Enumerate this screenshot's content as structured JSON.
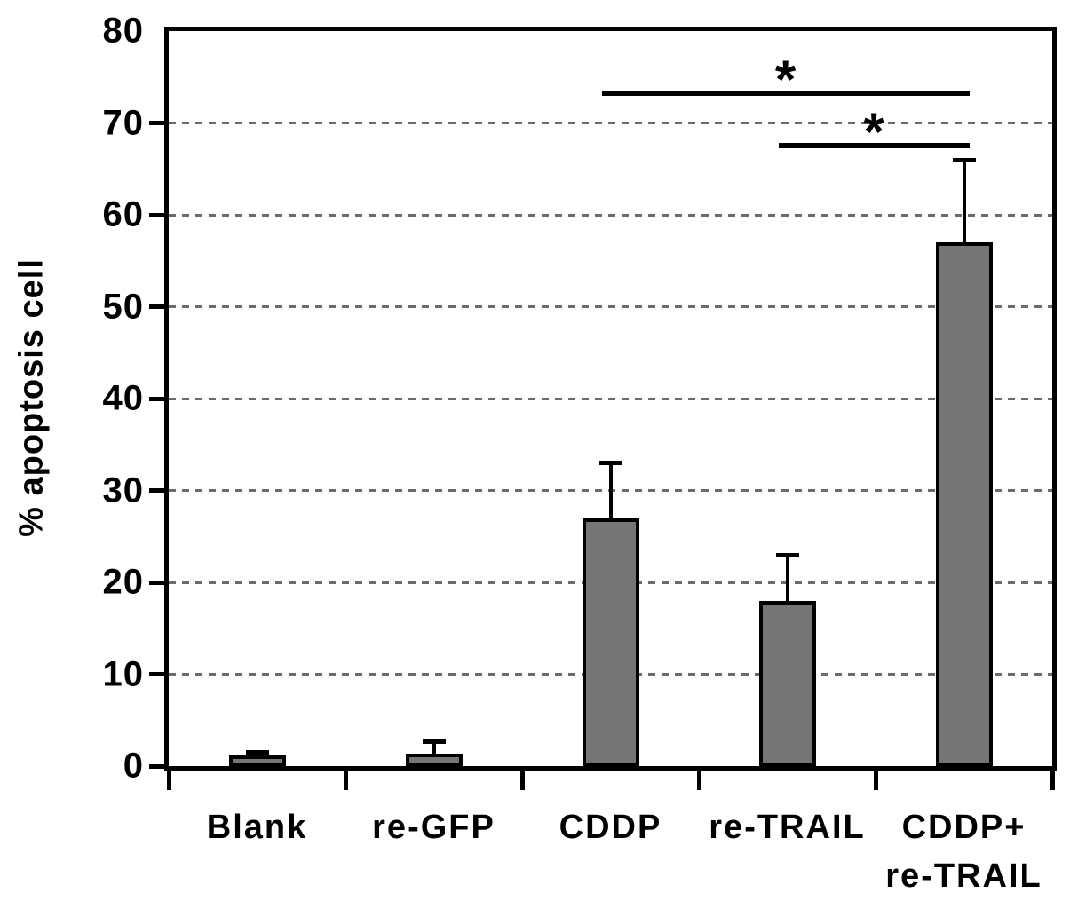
{
  "chart_data": {
    "type": "bar",
    "title": "",
    "xlabel": "",
    "ylabel": "% apoptosis cell",
    "ylim": [
      0,
      80
    ],
    "yticks": [
      0,
      10,
      20,
      30,
      40,
      50,
      60,
      70,
      80
    ],
    "gridlines": [
      10,
      20,
      30,
      40,
      50,
      60,
      70
    ],
    "grid_style": "dashed",
    "legend": "none",
    "categories": [
      "Blank",
      "re-GFP",
      "CDDP",
      "re-TRAIL",
      "CDDP+\nre-TRAIL"
    ],
    "values": [
      1.2,
      1.4,
      27,
      18,
      57
    ],
    "errors_upper": [
      0.3,
      1.3,
      6,
      5,
      9
    ],
    "bar_color": "#757575",
    "bar_border_color": "#000000",
    "gridline_color": "#6b6b6b",
    "axis_color": "#000000",
    "significance_marks": [
      {
        "from_index": 2,
        "to_index": 4,
        "y_value": 73.5,
        "label": "*"
      },
      {
        "from_index": 3,
        "to_index": 4,
        "y_value": 67.8,
        "label": "*"
      }
    ]
  }
}
